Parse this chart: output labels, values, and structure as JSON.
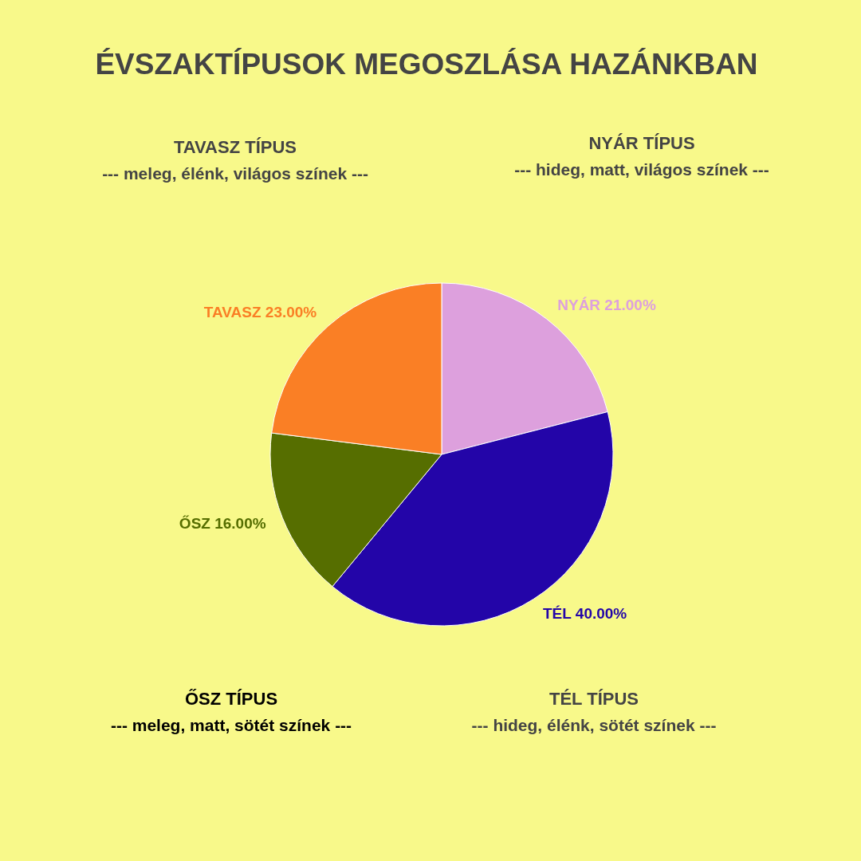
{
  "chart_data": {
    "type": "pie",
    "title": "ÉVSZAKTÍPUSOK MEGOSZLÁSA HAZÁNKBAN",
    "categories": [
      "NYÁR",
      "TÉL",
      "ŐSZ",
      "TAVASZ"
    ],
    "values": [
      21,
      40,
      16,
      23
    ],
    "colors": [
      "#dda0dd",
      "#2305a8",
      "#566e00",
      "#fa7f25"
    ],
    "value_labels": [
      "21.00%",
      "40.00%",
      "16.00%",
      "23.00%"
    ],
    "annotations": [
      "TAVASZ TÍPUS",
      "--- meleg, élénk, világos színek ---",
      "NYÁR TÍPUS",
      "--- hideg, matt, világos színek ---",
      "ŐSZ TÍPUS",
      "--- meleg, matt, sötét színek ---",
      "TÉL TÍPUS",
      "--- hideg, élénk, sötét színek ---"
    ]
  }
}
